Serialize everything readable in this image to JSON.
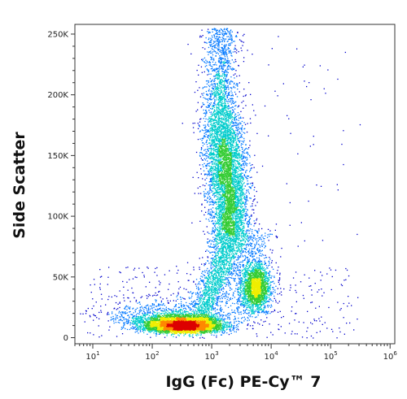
{
  "chart_data": {
    "type": "scatter",
    "plot_style": "flow cytometry density dot plot",
    "xlabel": "IgG (Fc) PE-Cy™ 7",
    "ylabel": "Side Scatter",
    "x_scale": "log",
    "x_range": [
      5,
      1200000
    ],
    "y_range": [
      -5000,
      258000
    ],
    "x_tick_labels": [
      {
        "value": 10,
        "base": "10",
        "exp": "1"
      },
      {
        "value": 100,
        "base": "10",
        "exp": "2"
      },
      {
        "value": 1000,
        "base": "10",
        "exp": "3"
      },
      {
        "value": 10000,
        "base": "10",
        "exp": "4"
      },
      {
        "value": 100000,
        "base": "10",
        "exp": "5"
      },
      {
        "value": 1000000,
        "base": "10",
        "exp": "6"
      }
    ],
    "y_tick_labels": [
      {
        "value": 0,
        "label": "0"
      },
      {
        "value": 50000,
        "label": "50K"
      },
      {
        "value": 100000,
        "label": "100K"
      },
      {
        "value": 150000,
        "label": "150K"
      },
      {
        "value": 200000,
        "label": "200K"
      },
      {
        "value": 250000,
        "label": "250K"
      }
    ],
    "density_colormap": [
      "#0000cc",
      "#0077ff",
      "#00cccc",
      "#33cc33",
      "#eeee00",
      "#ff8800",
      "#dd0000"
    ],
    "populations": [
      {
        "x_center": 320,
        "y_center": 8000,
        "x_spread_decades": 0.33,
        "y_spread": 5000,
        "relative_density": "very high"
      },
      {
        "x_center": 1800,
        "y_center": 128000,
        "x_spread_decades": 0.18,
        "y_spread": 30000,
        "relative_density": "medium"
      },
      {
        "x_center": 5500,
        "y_center": 42000,
        "x_spread_decades": 0.12,
        "y_spread": 9000,
        "relative_density": "medium"
      }
    ],
    "grid": false,
    "legend": "none"
  }
}
